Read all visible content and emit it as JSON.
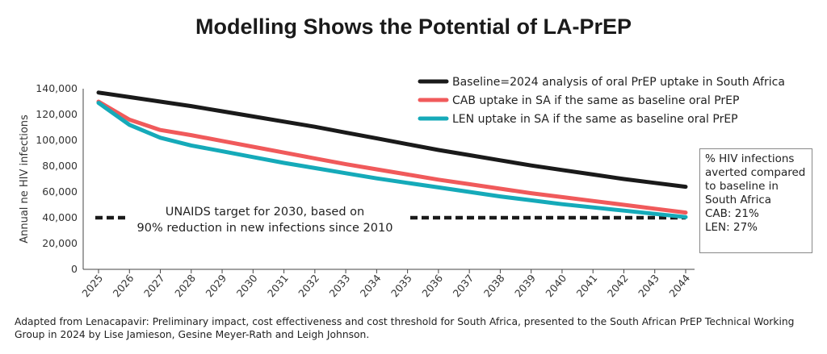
{
  "title": "Modelling Shows the Potential of LA-PrEP",
  "chart_data": {
    "type": "line",
    "x": [
      2025,
      2026,
      2027,
      2028,
      2029,
      2030,
      2031,
      2032,
      2033,
      2034,
      2035,
      2036,
      2037,
      2038,
      2039,
      2040,
      2041,
      2042,
      2043,
      2044
    ],
    "ylabel": "Annual ne HIV infections",
    "ylim": [
      0,
      140000
    ],
    "yticks": [
      "0",
      "20,000",
      "40,000",
      "60,000",
      "80,000",
      "100,000",
      "120,000",
      "140,000"
    ],
    "grid": false,
    "legend_position": "top-right",
    "series": [
      {
        "name": "Baseline=2024 analysis of oral PrEP uptake in South Africa",
        "color": "#1a1a1a",
        "values": [
          137000,
          133500,
          130000,
          126500,
          122500,
          118500,
          114500,
          110500,
          106000,
          101500,
          97000,
          92500,
          88500,
          84500,
          80500,
          77000,
          73500,
          70000,
          67000,
          64000
        ]
      },
      {
        "name": "CAB uptake in SA if the same as baseline oral PrEP",
        "color": "#f05a5b",
        "values": [
          130000,
          116000,
          108000,
          104000,
          99500,
          95000,
          90500,
          86000,
          81500,
          77500,
          73500,
          69500,
          66000,
          62500,
          59000,
          56000,
          53000,
          50000,
          47000,
          44000
        ]
      },
      {
        "name": "LEN uptake in SA if the same as baseline oral PrEP",
        "color": "#15aab9",
        "values": [
          129000,
          112000,
          102000,
          96000,
          91500,
          87000,
          82500,
          78500,
          74500,
          70500,
          67000,
          63500,
          60000,
          56500,
          53500,
          50500,
          48000,
          45500,
          43000,
          40500
        ]
      }
    ],
    "target": {
      "value": 40000,
      "color": "#1a1a1a",
      "label_lines": [
        "UNAIDS target for 2030, based on",
        "90% reduction in new infections since 2010"
      ]
    }
  },
  "summary_box": {
    "lines": [
      "% HIV infections",
      "averted compared",
      "to baseline in",
      "South Africa"
    ],
    "cab": "CAB: 21%",
    "len": "LEN: 27%"
  },
  "footer": "Adapted from Lenacapavir: Preliminary impact, cost effectiveness and cost threshold for South Africa, presented to the South African PrEP Technical Working Group in 2024 by Lise Jamieson, Gesine Meyer-Rath and Leigh Johnson."
}
